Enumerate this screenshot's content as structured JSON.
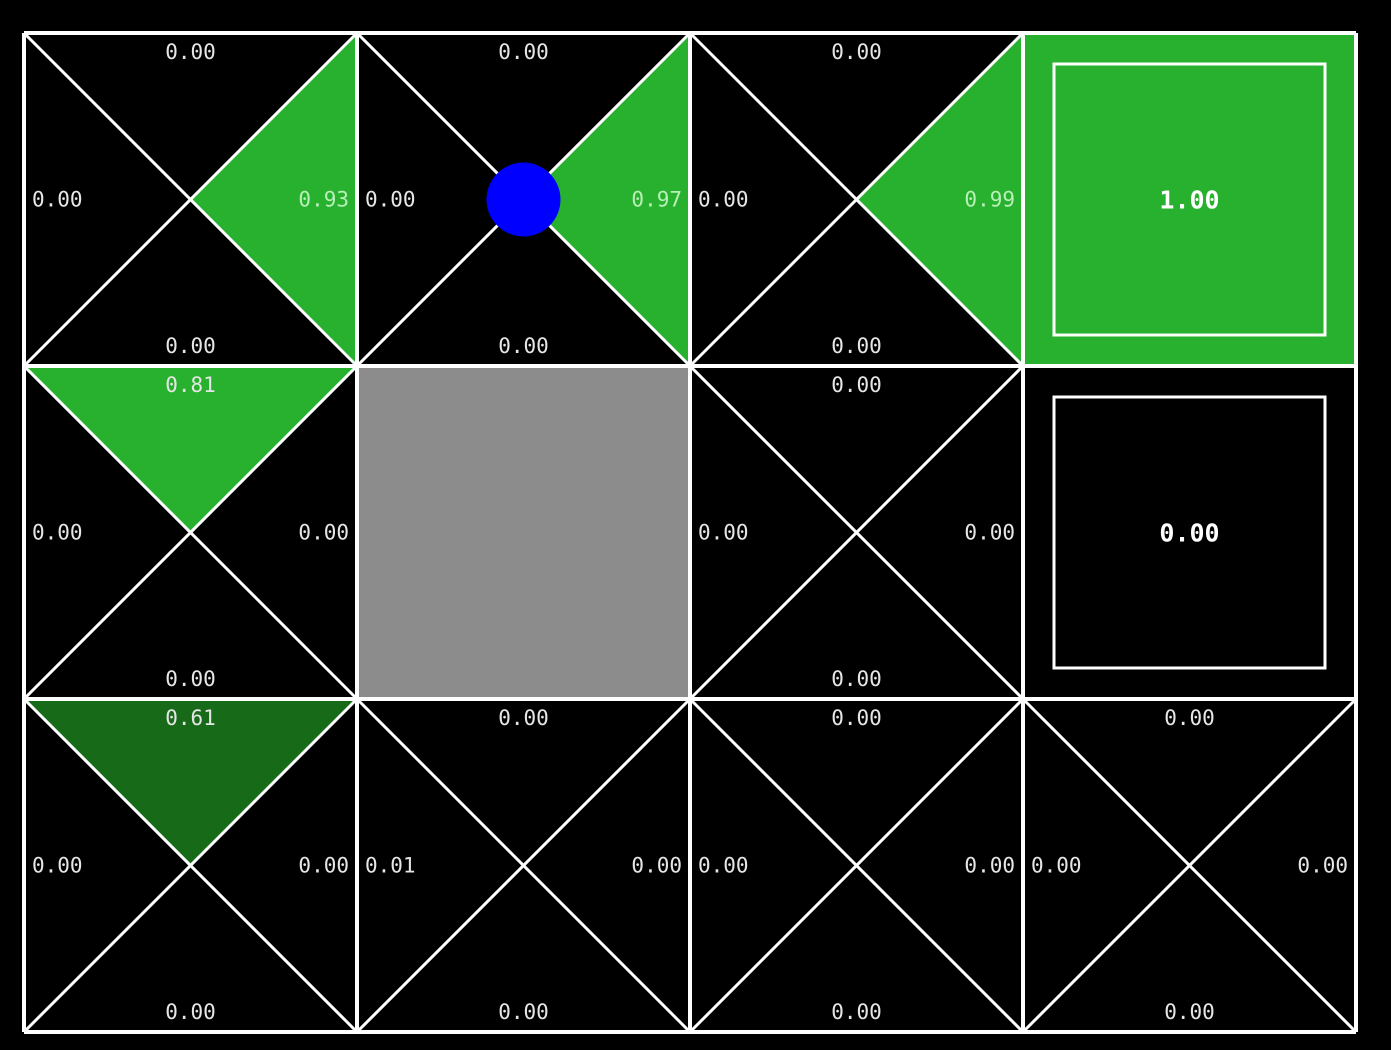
{
  "gridworld": {
    "rows": 3,
    "cols": 4,
    "colors": {
      "background": "#000000",
      "grid": "#ffffff",
      "wall": "#8c8c8c",
      "agent": "#0000ff",
      "q_high": "#28b12e",
      "q_mid": "#176b18",
      "terminal_positive": "#28b12e",
      "terminal_zero": "#000000"
    },
    "agent": {
      "row": 0,
      "col": 1,
      "icon": "agent-dot"
    },
    "cells": [
      {
        "row": 0,
        "col": 0,
        "kind": "q",
        "q": {
          "north": "0.00",
          "east": "0.93",
          "south": "0.00",
          "west": "0.00"
        },
        "shade": {
          "north": 0,
          "east": 0.93,
          "south": 0,
          "west": 0
        }
      },
      {
        "row": 0,
        "col": 1,
        "kind": "q",
        "q": {
          "north": "0.00",
          "east": "0.97",
          "south": "0.00",
          "west": "0.00"
        },
        "shade": {
          "north": 0,
          "east": 0.97,
          "south": 0,
          "west": 0
        }
      },
      {
        "row": 0,
        "col": 2,
        "kind": "q",
        "q": {
          "north": "0.00",
          "east": "0.99",
          "south": "0.00",
          "west": "0.00"
        },
        "shade": {
          "north": 0,
          "east": 0.99,
          "south": 0,
          "west": 0
        }
      },
      {
        "row": 0,
        "col": 3,
        "kind": "terminal",
        "value": "1.00",
        "shade": 1.0
      },
      {
        "row": 1,
        "col": 0,
        "kind": "q",
        "q": {
          "north": "0.81",
          "east": "0.00",
          "south": "0.00",
          "west": "0.00"
        },
        "shade": {
          "north": 0.81,
          "east": 0,
          "south": 0,
          "west": 0
        }
      },
      {
        "row": 1,
        "col": 1,
        "kind": "wall"
      },
      {
        "row": 1,
        "col": 2,
        "kind": "q",
        "q": {
          "north": "0.00",
          "east": "0.00",
          "south": "0.00",
          "west": "0.00"
        },
        "shade": {
          "north": 0,
          "east": 0,
          "south": 0,
          "west": 0
        }
      },
      {
        "row": 1,
        "col": 3,
        "kind": "terminal",
        "value": "0.00",
        "shade": 0
      },
      {
        "row": 2,
        "col": 0,
        "kind": "q",
        "q": {
          "north": "0.61",
          "east": "0.00",
          "south": "0.00",
          "west": "0.00"
        },
        "shade": {
          "north": 0.61,
          "east": 0,
          "south": 0,
          "west": 0
        }
      },
      {
        "row": 2,
        "col": 1,
        "kind": "q",
        "q": {
          "north": "0.00",
          "east": "0.00",
          "south": "0.00",
          "west": "0.01"
        },
        "shade": {
          "north": 0,
          "east": 0,
          "south": 0,
          "west": 0
        }
      },
      {
        "row": 2,
        "col": 2,
        "kind": "q",
        "q": {
          "north": "0.00",
          "east": "0.00",
          "south": "0.00",
          "west": "0.00"
        },
        "shade": {
          "north": 0,
          "east": 0,
          "south": 0,
          "west": 0
        }
      },
      {
        "row": 2,
        "col": 3,
        "kind": "q",
        "q": {
          "north": "0.00",
          "east": "0.00",
          "south": "0.00",
          "west": "0.00"
        },
        "shade": {
          "north": 0,
          "east": 0,
          "south": 0,
          "west": 0
        }
      }
    ]
  }
}
